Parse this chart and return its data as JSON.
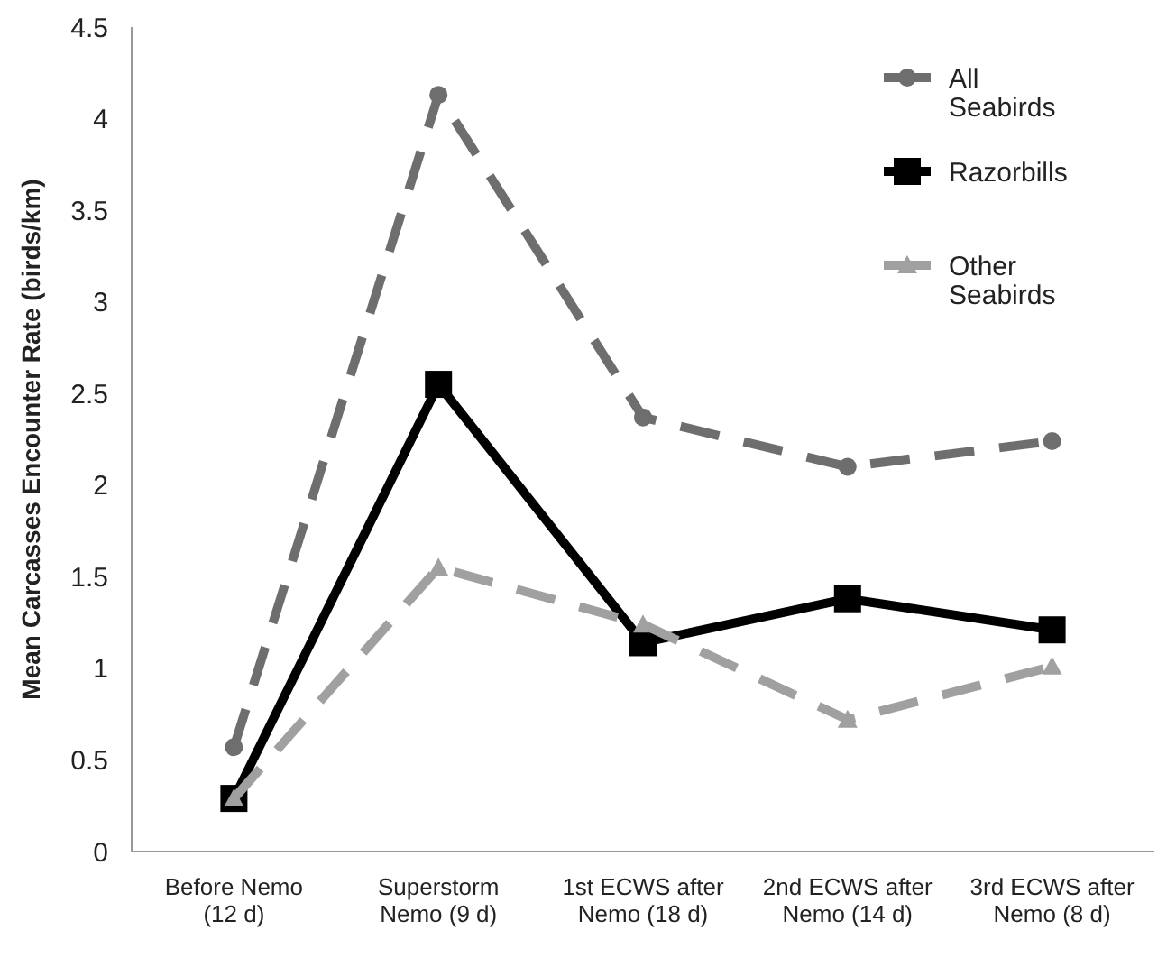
{
  "chart_data": {
    "type": "line",
    "ylabel": "Mean Carcasses Encounter Rate (birds/km)",
    "categories": [
      "Before Nemo (12 d)",
      "Superstorm Nemo (9 d)",
      "1st ECWS after Nemo (18 d)",
      "2nd ECWS after Nemo (14 d)",
      "3rd ECWS after Nemo (8 d)"
    ],
    "ylim": [
      0,
      4.5
    ],
    "yticks": [
      0,
      0.5,
      1,
      1.5,
      2,
      2.5,
      3,
      3.5,
      4,
      4.5
    ],
    "grid": false,
    "legend": "top right",
    "series": [
      {
        "name": "All Seabirds",
        "color": "#6e6e6e",
        "marker": "circle",
        "line_style": "dashed",
        "values": [
          0.57,
          4.13,
          2.37,
          2.1,
          2.24
        ]
      },
      {
        "name": "Razorbills",
        "color": "#000000",
        "marker": "square",
        "line_style": "solid",
        "values": [
          0.29,
          2.55,
          1.14,
          1.38,
          1.21
        ]
      },
      {
        "name": "Other Seabirds",
        "color": "#a0a0a0",
        "marker": "triangle",
        "line_style": "dashed",
        "values": [
          0.29,
          1.55,
          1.24,
          0.72,
          1.01
        ]
      }
    ]
  }
}
